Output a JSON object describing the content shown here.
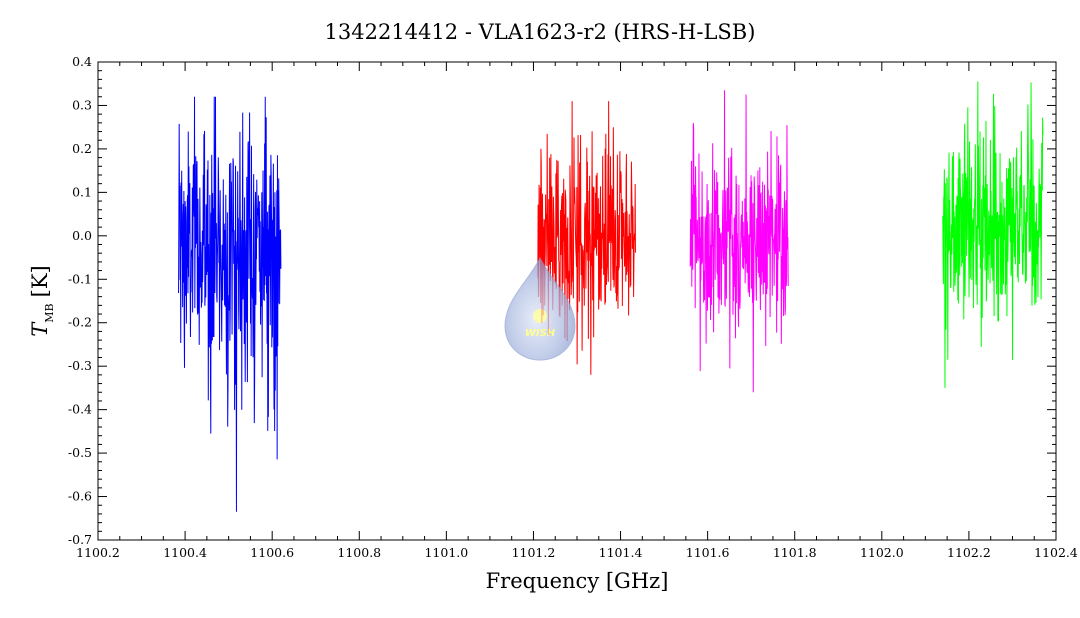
{
  "chart_data": {
    "type": "line",
    "title": "1342214412 - VLA1623-r2 (HRS-H-LSB)",
    "xlabel": "Frequency [GHz]",
    "ylabel_symbol": "T",
    "ylabel_subscript": "MB",
    "ylabel_unit": "[K]",
    "xlim": [
      1100.2,
      1102.4
    ],
    "ylim": [
      -0.7,
      0.4
    ],
    "x_ticks": [
      "1100.2",
      "1100.4",
      "1100.6",
      "1100.8",
      "1101.0",
      "1101.2",
      "1101.4",
      "1101.6",
      "1101.8",
      "1102.0",
      "1102.2",
      "1102.4"
    ],
    "y_ticks": [
      "0.4",
      "0.3",
      "0.2",
      "0.1",
      "0.0",
      "-0.1",
      "-0.2",
      "-0.3",
      "-0.4",
      "-0.5",
      "-0.6",
      "-0.7"
    ],
    "grid": false,
    "series": [
      {
        "color": "#0000ff",
        "x_range": [
          1100.385,
          1100.62
        ],
        "center": -0.03,
        "ymin": -0.635,
        "ymax": 0.32,
        "extreme_x": 1100.518
      },
      {
        "color": "#ff0000",
        "x_range": [
          1101.21,
          1101.435
        ],
        "center": 0.0,
        "ymin": -0.32,
        "ymax": 0.31,
        "extreme_x": 1101.332
      },
      {
        "color": "#ff00ff",
        "x_range": [
          1101.56,
          1101.785
        ],
        "center": -0.01,
        "ymin": -0.36,
        "ymax": 0.335,
        "extreme_x": 1101.705
      },
      {
        "color": "#00ff00",
        "x_range": [
          1102.14,
          1102.37
        ],
        "center": 0.02,
        "ymin": -0.35,
        "ymax": 0.355,
        "extreme_x": 1102.145
      }
    ]
  },
  "logo": {
    "text": "WISH"
  }
}
